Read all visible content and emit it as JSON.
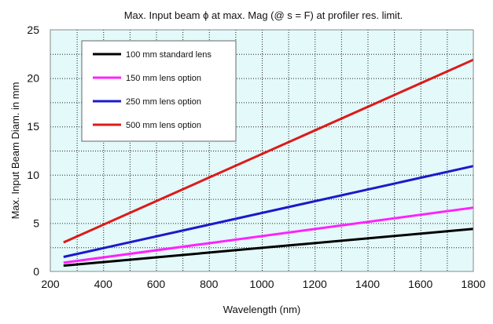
{
  "chart_data": {
    "type": "line",
    "title": "Max. Input beam ϕ at max. Mag (@ s = F) at profiler res. limit.",
    "xlabel": "Wavelength (nm)",
    "ylabel": "Max. Input Beam Diam. in mm",
    "xlim": [
      200,
      1800
    ],
    "ylim": [
      0,
      25
    ],
    "x_ticks": [
      "200",
      "400",
      "600",
      "800",
      "1000",
      "1200",
      "1400",
      "1600",
      "1800"
    ],
    "y_ticks": [
      "0",
      "5",
      "10",
      "15",
      "20",
      "25"
    ],
    "grid": true,
    "legend_position": "top-left",
    "plot_background": "#e4f9f9",
    "series": [
      {
        "name": "100 mm standard lens",
        "color": "#000000",
        "x": [
          250,
          1800
        ],
        "y": [
          0.6,
          4.4
        ]
      },
      {
        "name": "150 mm lens option",
        "color": "#ff22ff",
        "x": [
          250,
          1800
        ],
        "y": [
          0.9,
          6.6
        ]
      },
      {
        "name": "250 mm lens option",
        "color": "#1a1acc",
        "x": [
          250,
          1800
        ],
        "y": [
          1.5,
          10.9
        ]
      },
      {
        "name": "500 mm lens option",
        "color": "#dd1a1a",
        "x": [
          250,
          1800
        ],
        "y": [
          3.0,
          21.9
        ]
      }
    ]
  }
}
